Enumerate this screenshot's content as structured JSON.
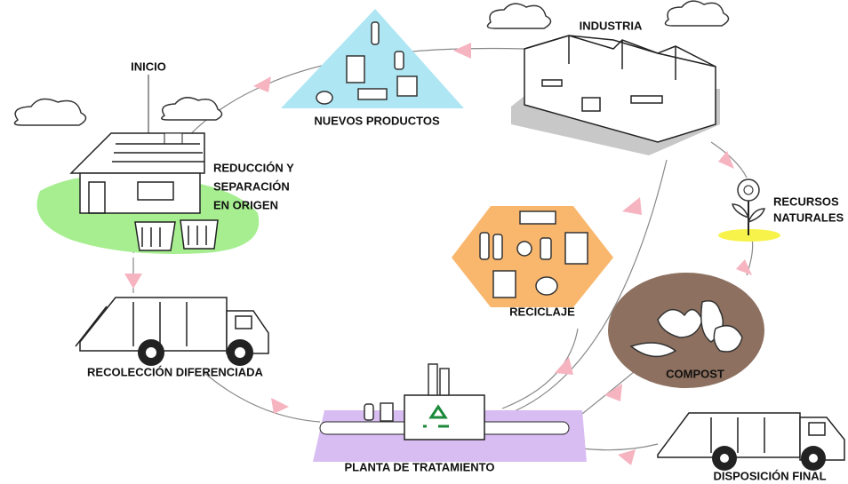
{
  "nodes": [
    {
      "lines": [
        "INICIO"
      ]
    },
    {
      "lines": [
        "NUEVOS PRODUCTOS"
      ]
    },
    {
      "lines": [
        "INDUSTRIA"
      ]
    },
    {
      "lines": [
        "REDUCCIÓN Y",
        "SEPARACIÓN",
        "EN ORIGEN"
      ]
    },
    {
      "lines": [
        "RECURSOS",
        "NATURALES"
      ]
    },
    {
      "lines": [
        "RECICLAJE"
      ]
    },
    {
      "lines": [
        "RECOLECCIÓN DIFERENCIADA"
      ]
    },
    {
      "lines": [
        "COMPOST"
      ]
    },
    {
      "lines": [
        "PLANTA DE TRATAMIENTO"
      ]
    },
    {
      "lines": [
        "DISPOSICIÓN FINAL"
      ]
    }
  ]
}
